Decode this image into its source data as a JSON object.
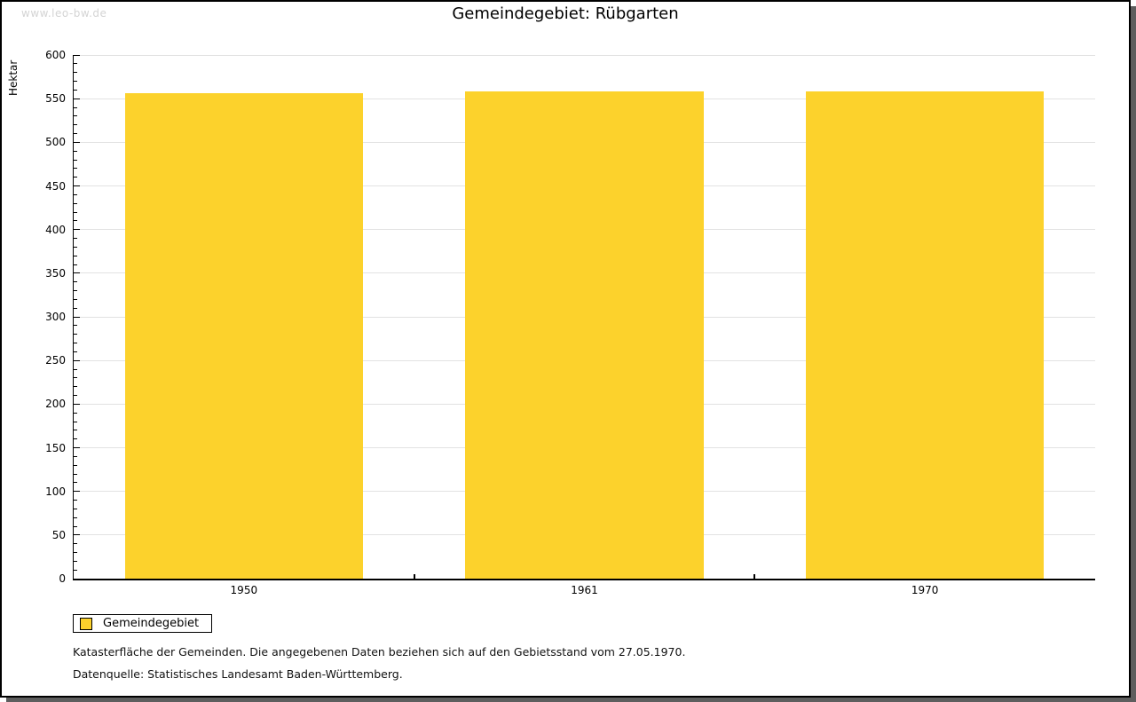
{
  "watermark": "www.leo-bw.de",
  "title": "Gemeindegebiet: Rübgarten",
  "chart_data": {
    "type": "bar",
    "title": "Gemeindegebiet: Rübgarten",
    "categories": [
      "1950",
      "1961",
      "1970"
    ],
    "series": [
      {
        "name": "Gemeindegebiet",
        "values": [
          556,
          558,
          558
        ]
      }
    ],
    "xlabel": "",
    "ylabel": "Hektar",
    "ylim": [
      0,
      600
    ],
    "ytick_major": 50,
    "ytick_minor": 10,
    "grid": true,
    "legend_position": "bottom-left",
    "bar_color": "#FCD22C",
    "gridline_color": "#E2E2E2",
    "bar_width_fraction": 0.7
  },
  "legend": {
    "label": "Gemeindegebiet"
  },
  "footnotes": [
    "Katasterfläche der Gemeinden. Die angegebenen Daten beziehen sich auf den Gebietsstand vom 27.05.1970.",
    "Datenquelle: Statistisches Landesamt Baden-Württemberg."
  ]
}
